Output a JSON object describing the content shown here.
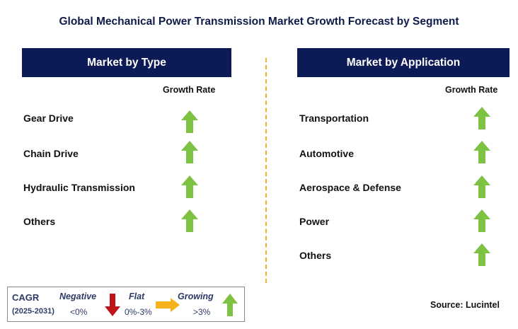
{
  "title": "Global Mechanical Power Transmission Market Growth Forecast by Segment",
  "left_panel": {
    "header": "Market by Type",
    "growth_rate_label": "Growth Rate",
    "items": [
      {
        "label": "Gear Drive",
        "trend": "growing"
      },
      {
        "label": "Chain Drive",
        "trend": "growing"
      },
      {
        "label": "Hydraulic Transmission",
        "trend": "growing"
      },
      {
        "label": "Others",
        "trend": "growing"
      }
    ]
  },
  "right_panel": {
    "header": "Market by Application",
    "growth_rate_label": "Growth Rate",
    "items": [
      {
        "label": "Transportation",
        "trend": "growing"
      },
      {
        "label": "Automotive",
        "trend": "growing"
      },
      {
        "label": "Aerospace & Defense",
        "trend": "growing"
      },
      {
        "label": "Power",
        "trend": "growing"
      },
      {
        "label": "Others",
        "trend": "growing"
      }
    ]
  },
  "legend": {
    "cagr_label": "CAGR",
    "period": "(2025-2031)",
    "negative_label": "Negative",
    "negative_range": "<0%",
    "flat_label": "Flat",
    "flat_range": "0%-3%",
    "growing_label": "Growing",
    "growing_range": ">3%"
  },
  "source": "Source: Lucintel",
  "colors": {
    "header_bg": "#0c1a55",
    "title": "#0f1b47",
    "growing": "#7dc242",
    "negative": "#c0141b",
    "flat": "#f5b21b",
    "divider": "#f2b120"
  },
  "icons": {
    "growing": "green-up-arrow-icon",
    "negative": "red-down-arrow-icon",
    "flat": "orange-right-arrow-icon"
  }
}
